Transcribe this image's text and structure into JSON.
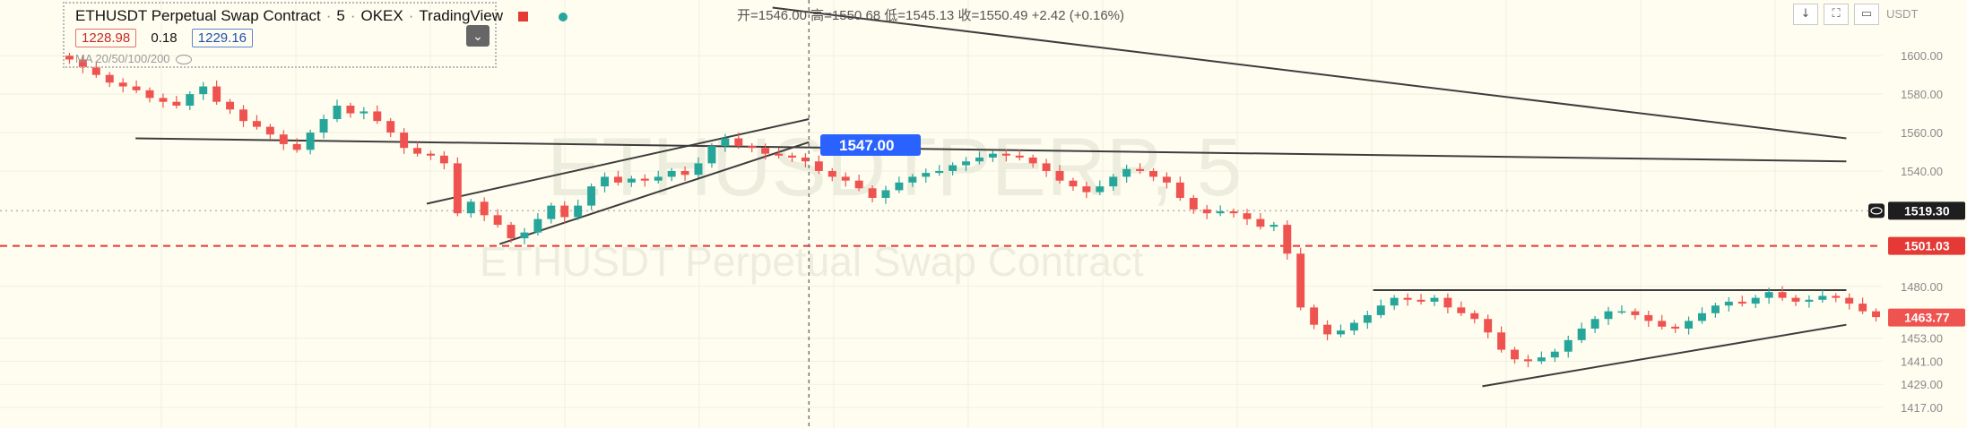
{
  "legend": {
    "title": "ETHUSDT Perpetual Swap Contract",
    "interval": "5",
    "exchange": "OKEX",
    "platform": "TradingView",
    "bid": "1228.98",
    "spread": "0.18",
    "ask": "1229.16",
    "ma_label": "MA 20/50/100/200"
  },
  "ohlc_readout": "开=1546.00 高=1550.68 低=1545.13 收=1550.49 +2.42 (+0.16%)",
  "axis_currency": "USDT",
  "watermark": {
    "line1": "ETHUSDTPERP, 5",
    "line2": "ETHUSDT Perpetual Swap Contract"
  },
  "colors": {
    "background": "#fffdf0",
    "up": "#26a69a",
    "down": "#ef5350",
    "dashed_red": "#e53935",
    "label_blue": "#2962ff"
  },
  "chart_data": {
    "type": "candlestick",
    "title": "ETHUSDT Perpetual Swap Contract · 5 · OKEX",
    "ylim": [
      1410,
      1615
    ],
    "y_ticks": [
      1600.0,
      1580.0,
      1560.0,
      1540.0,
      1480.0,
      1453.0,
      1441.0,
      1429.0,
      1417.0
    ],
    "close_path": [
      1598,
      1594,
      1590,
      1586,
      1584,
      1582,
      1578,
      1576,
      1574,
      1580,
      1584,
      1576,
      1572,
      1566,
      1563,
      1559,
      1554,
      1551,
      1560,
      1567,
      1574,
      1570,
      1571,
      1566,
      1560,
      1552,
      1549,
      1548,
      1544,
      1518,
      1524,
      1517,
      1512,
      1505,
      1508,
      1515,
      1522,
      1516,
      1522,
      1532,
      1537,
      1534,
      1536,
      1535,
      1537,
      1540,
      1538,
      1544,
      1553,
      1557,
      1553,
      1552,
      1549,
      1548,
      1547,
      1545,
      1540,
      1537,
      1535,
      1531,
      1526,
      1530,
      1534,
      1537,
      1539,
      1540,
      1543,
      1545,
      1547,
      1549,
      1548,
      1547,
      1544,
      1540,
      1535,
      1532,
      1529,
      1532,
      1537,
      1541,
      1540,
      1537,
      1534,
      1526,
      1520,
      1518,
      1519,
      1518,
      1515,
      1511,
      1512,
      1497,
      1469,
      1460,
      1455,
      1457,
      1461,
      1465,
      1470,
      1474,
      1473,
      1472,
      1474,
      1469,
      1466,
      1463,
      1456,
      1447,
      1442,
      1441,
      1443,
      1446,
      1452,
      1458,
      1463,
      1467,
      1467,
      1465,
      1462,
      1459,
      1458,
      1462,
      1466,
      1470,
      1472,
      1471,
      1474,
      1477,
      1474,
      1472,
      1473,
      1475,
      1474,
      1471,
      1467,
      1464
    ],
    "horizontal_levels": [
      {
        "label": "1519.30",
        "style": "dotted"
      },
      {
        "label": "1501.03",
        "style": "dashed"
      }
    ],
    "price_labels": [
      {
        "label": "1547.00"
      },
      {
        "label": "1463.77"
      }
    ],
    "trendlines": [
      {
        "p1": [
          0.04,
          1557
        ],
        "p2": [
          0.98,
          1545
        ]
      },
      {
        "p1": [
          0.39,
          1625
        ],
        "p2": [
          0.98,
          1557
        ]
      },
      {
        "p1": [
          0.2,
          1523
        ],
        "p2": [
          0.41,
          1567
        ]
      },
      {
        "p1": [
          0.24,
          1502
        ],
        "p2": [
          0.41,
          1555
        ]
      },
      {
        "p1": [
          0.72,
          1478
        ],
        "p2": [
          0.98,
          1478
        ]
      },
      {
        "p1": [
          0.78,
          1428
        ],
        "p2": [
          0.98,
          1460
        ]
      }
    ],
    "crosshair_x": 0.41
  }
}
